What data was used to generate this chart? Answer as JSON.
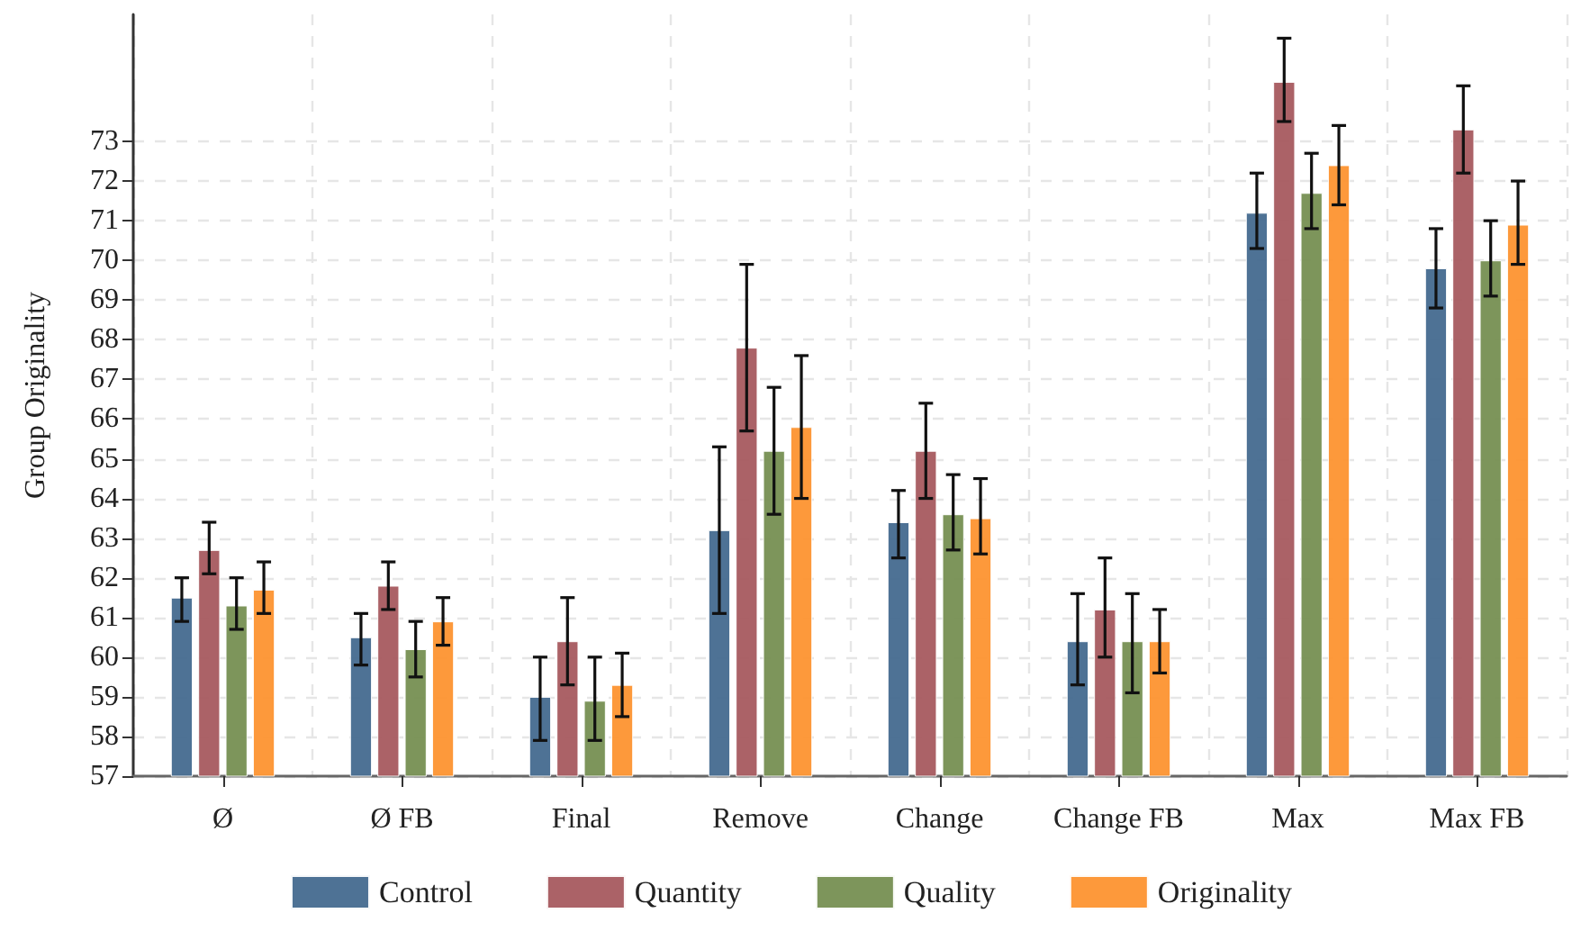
{
  "chart_data": {
    "type": "bar",
    "ylabel": "Group Originality",
    "categories": [
      "Ø",
      "Ø FB",
      "Final",
      "Remove",
      "Change",
      "Change FB",
      "Max",
      "Max FB"
    ],
    "series": [
      {
        "name": "Control",
        "color": "#456a8f",
        "values": [
          61.5,
          60.5,
          59.0,
          63.2,
          63.4,
          60.4,
          71.2,
          69.8
        ],
        "errors": [
          [
            60.9,
            62.0
          ],
          [
            59.8,
            61.1
          ],
          [
            57.9,
            60.0
          ],
          [
            61.1,
            65.3
          ],
          [
            62.5,
            64.2
          ],
          [
            59.3,
            61.6
          ],
          [
            70.3,
            72.2
          ],
          [
            68.8,
            70.8
          ]
        ]
      },
      {
        "name": "Quantity",
        "color": "#a65a5f",
        "values": [
          62.7,
          61.8,
          60.4,
          67.8,
          65.2,
          61.2,
          74.5,
          73.3
        ],
        "errors": [
          [
            62.1,
            63.4
          ],
          [
            61.2,
            62.4
          ],
          [
            59.3,
            61.5
          ],
          [
            65.7,
            69.9
          ],
          [
            64.0,
            66.4
          ],
          [
            60.0,
            62.5
          ],
          [
            73.5,
            75.6
          ],
          [
            72.2,
            74.4
          ]
        ]
      },
      {
        "name": "Quality",
        "color": "#768f52",
        "values": [
          61.3,
          60.2,
          58.9,
          65.2,
          63.6,
          60.4,
          71.7,
          70.0
        ],
        "errors": [
          [
            60.7,
            62.0
          ],
          [
            59.5,
            60.9
          ],
          [
            57.9,
            60.0
          ],
          [
            63.6,
            66.8
          ],
          [
            62.7,
            64.6
          ],
          [
            59.1,
            61.6
          ],
          [
            70.8,
            72.7
          ],
          [
            69.1,
            71.0
          ]
        ]
      },
      {
        "name": "Originality",
        "color": "#fd9330",
        "values": [
          61.7,
          60.9,
          59.3,
          65.8,
          63.5,
          60.4,
          72.4,
          70.9
        ],
        "errors": [
          [
            61.1,
            62.4
          ],
          [
            60.3,
            61.5
          ],
          [
            58.5,
            60.1
          ],
          [
            64.0,
            67.6
          ],
          [
            62.6,
            64.5
          ],
          [
            59.6,
            61.2
          ],
          [
            71.4,
            73.4
          ],
          [
            69.9,
            72.0
          ]
        ]
      }
    ],
    "ylim": [
      57,
      76.2
    ],
    "yticks": [
      57,
      58,
      59,
      60,
      61,
      62,
      63,
      64,
      65,
      66,
      67,
      68,
      69,
      70,
      71,
      72,
      73
    ],
    "grid": true,
    "legend": "bottom"
  }
}
